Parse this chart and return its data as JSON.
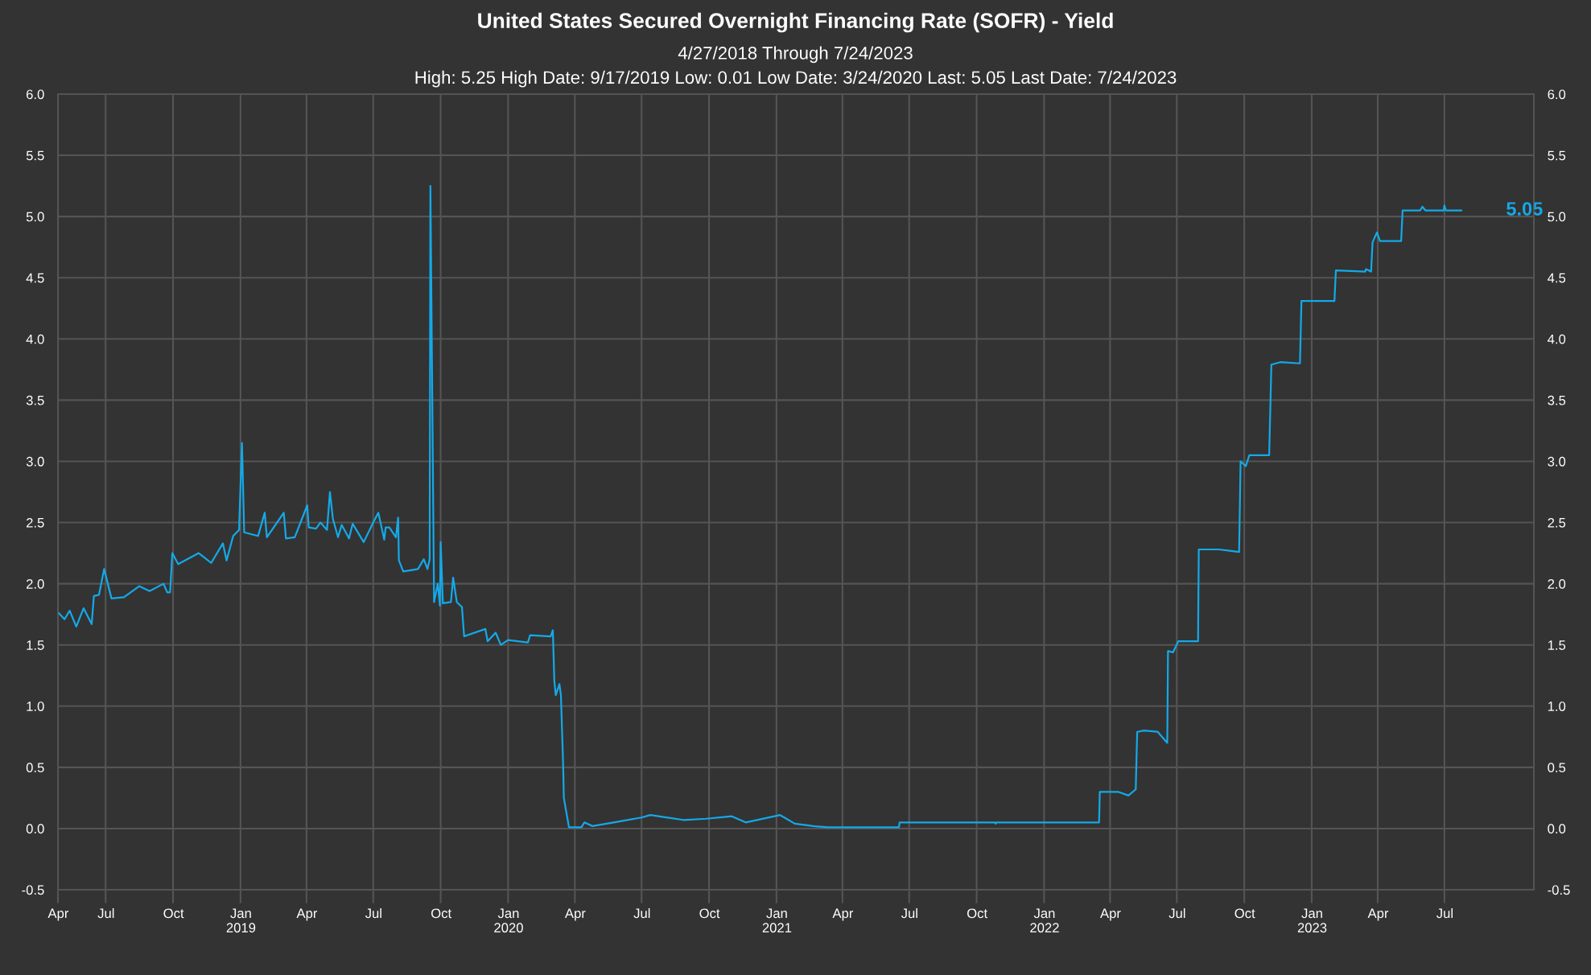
{
  "chart_data": {
    "type": "line",
    "title": "United States Secured Overnight Financing Rate (SOFR) - Yield",
    "subtitle": "4/27/2018 Through 7/24/2023\nHigh: 5.25 High Date: 9/17/2019 Low: 0.01 Low Date: 3/24/2020 Last: 5.05 Last Date: 7/24/2023",
    "x": [
      "2018-04-28",
      "2018-05-06",
      "2018-05-13",
      "2018-05-22",
      "2018-06-01",
      "2018-06-12",
      "2018-06-15",
      "2018-06-22",
      "2018-06-29",
      "2018-07-09",
      "2018-07-26",
      "2018-08-16",
      "2018-08-30",
      "2018-09-18",
      "2018-09-23",
      "2018-09-27",
      "2018-09-30",
      "2018-10-08",
      "2018-11-05",
      "2018-11-22",
      "2018-12-08",
      "2018-12-13",
      "2018-12-22",
      "2018-12-30",
      "2019-01-03",
      "2019-01-06",
      "2019-01-25",
      "2019-02-03",
      "2019-02-06",
      "2019-03-01",
      "2019-03-04",
      "2019-03-16",
      "2019-04-02",
      "2019-04-04",
      "2019-04-14",
      "2019-04-20",
      "2019-04-29",
      "2019-05-03",
      "2019-05-07",
      "2019-05-14",
      "2019-05-19",
      "2019-05-29",
      "2019-06-03",
      "2019-06-18",
      "2019-07-01",
      "2019-07-08",
      "2019-07-16",
      "2019-07-18",
      "2019-07-23",
      "2019-08-01",
      "2019-08-04",
      "2019-08-05",
      "2019-08-11",
      "2019-08-31",
      "2019-09-08",
      "2019-09-13",
      "2019-09-16",
      "2019-09-17",
      "2019-09-22",
      "2019-09-27",
      "2019-09-30",
      "2019-10-01",
      "2019-10-04",
      "2019-10-15",
      "2019-10-18",
      "2019-10-23",
      "2019-10-30",
      "2019-11-02",
      "2019-12-01",
      "2019-12-04",
      "2019-12-15",
      "2019-12-22",
      "2020-01-01",
      "2020-01-28",
      "2020-01-31",
      "2020-02-28",
      "2020-03-02",
      "2020-03-04",
      "2020-03-06",
      "2020-03-11",
      "2020-03-13",
      "2020-03-16",
      "2020-03-17",
      "2020-03-24",
      "2020-04-10",
      "2020-04-14",
      "2020-04-25",
      "2020-05-24",
      "2020-07-01",
      "2020-07-13",
      "2020-08-27",
      "2020-09-27",
      "2020-11-01",
      "2020-11-20",
      "2021-01-06",
      "2021-01-26",
      "2021-02-20",
      "2021-03-12",
      "2021-06-17",
      "2021-06-18",
      "2021-10-26",
      "2021-10-27",
      "2021-10-28",
      "2022-03-17",
      "2022-03-18",
      "2022-04-12",
      "2022-04-26",
      "2022-05-06",
      "2022-05-08",
      "2022-05-17",
      "2022-06-05",
      "2022-06-18",
      "2022-06-19",
      "2022-06-26",
      "2022-07-03",
      "2022-07-30",
      "2022-07-31",
      "2022-08-27",
      "2022-09-24",
      "2022-09-26",
      "2022-10-03",
      "2022-10-08",
      "2022-11-04",
      "2022-11-07",
      "2022-11-19",
      "2022-12-16",
      "2022-12-18",
      "2023-02-01",
      "2023-02-03",
      "2023-03-15",
      "2023-03-16",
      "2023-03-23",
      "2023-03-25",
      "2023-03-31",
      "2023-04-04",
      "2023-05-03",
      "2023-05-05",
      "2023-05-29",
      "2023-06-01",
      "2023-06-05",
      "2023-06-30",
      "2023-07-01",
      "2023-07-03",
      "2023-07-24"
    ],
    "series": [
      {
        "color": "#14a9e8",
        "values": [
          1.76,
          1.71,
          1.78,
          1.65,
          1.8,
          1.67,
          1.9,
          1.91,
          2.12,
          1.88,
          1.89,
          1.98,
          1.94,
          2.0,
          1.93,
          1.93,
          2.25,
          2.16,
          2.25,
          2.17,
          2.33,
          2.19,
          2.39,
          2.44,
          3.15,
          2.42,
          2.39,
          2.58,
          2.38,
          2.58,
          2.37,
          2.38,
          2.64,
          2.46,
          2.45,
          2.5,
          2.44,
          2.75,
          2.53,
          2.38,
          2.48,
          2.37,
          2.49,
          2.34,
          2.5,
          2.58,
          2.36,
          2.46,
          2.46,
          2.38,
          2.54,
          2.19,
          2.1,
          2.12,
          2.2,
          2.12,
          2.2,
          5.25,
          1.85,
          2.0,
          1.82,
          2.34,
          1.84,
          1.85,
          2.05,
          1.85,
          1.81,
          1.57,
          1.63,
          1.53,
          1.6,
          1.5,
          1.54,
          1.52,
          1.58,
          1.57,
          1.62,
          1.21,
          1.09,
          1.18,
          1.09,
          0.53,
          0.25,
          0.01,
          0.01,
          0.05,
          0.02,
          0.05,
          0.09,
          0.11,
          0.07,
          0.08,
          0.1,
          0.05,
          0.11,
          0.04,
          0.02,
          0.01,
          0.01,
          0.05,
          0.05,
          0.04,
          0.05,
          0.05,
          0.3,
          0.3,
          0.27,
          0.32,
          0.79,
          0.8,
          0.79,
          0.7,
          1.45,
          1.44,
          1.53,
          1.53,
          2.28,
          2.28,
          2.26,
          3.0,
          2.96,
          3.05,
          3.05,
          3.79,
          3.81,
          3.8,
          4.31,
          4.31,
          4.56,
          4.55,
          4.57,
          4.55,
          4.79,
          4.87,
          4.8,
          4.8,
          5.05,
          5.05,
          5.08,
          5.05,
          5.05,
          5.09,
          5.05,
          5.05
        ]
      }
    ],
    "xlim": [
      "2018-04-27",
      "2023-10-31"
    ],
    "xticks": [
      {
        "value": "2018-04-27",
        "label": "Apr"
      },
      {
        "value": "2018-07-01",
        "label": "Jul"
      },
      {
        "value": "2018-10-01",
        "label": "Oct"
      },
      {
        "value": "2019-01-01",
        "label": "Jan\n2019"
      },
      {
        "value": "2019-04-01",
        "label": "Apr"
      },
      {
        "value": "2019-07-01",
        "label": "Jul"
      },
      {
        "value": "2019-10-01",
        "label": "Oct"
      },
      {
        "value": "2020-01-01",
        "label": "Jan\n2020"
      },
      {
        "value": "2020-04-01",
        "label": "Apr"
      },
      {
        "value": "2020-07-01",
        "label": "Jul"
      },
      {
        "value": "2020-10-01",
        "label": "Oct"
      },
      {
        "value": "2021-01-01",
        "label": "Jan\n2021"
      },
      {
        "value": "2021-04-01",
        "label": "Apr"
      },
      {
        "value": "2021-07-01",
        "label": "Jul"
      },
      {
        "value": "2021-10-01",
        "label": "Oct"
      },
      {
        "value": "2022-01-01",
        "label": "Jan\n2022"
      },
      {
        "value": "2022-04-01",
        "label": "Apr"
      },
      {
        "value": "2022-07-01",
        "label": "Jul"
      },
      {
        "value": "2022-10-01",
        "label": "Oct"
      },
      {
        "value": "2023-01-01",
        "label": "Jan\n2023"
      },
      {
        "value": "2023-04-01",
        "label": "Apr"
      },
      {
        "value": "2023-07-01",
        "label": "Jul"
      }
    ],
    "ylim": [
      -0.5,
      6
    ],
    "yticks": [
      {
        "value": -0.5,
        "label": "-0.5"
      },
      {
        "value": 0,
        "label": "0.0"
      },
      {
        "value": 0.5,
        "label": "0.5"
      },
      {
        "value": 1,
        "label": "1.0"
      },
      {
        "value": 1.5,
        "label": "1.5"
      },
      {
        "value": 2,
        "label": "2.0"
      },
      {
        "value": 2.5,
        "label": "2.5"
      },
      {
        "value": 3,
        "label": "3.0"
      },
      {
        "value": 3.5,
        "label": "3.5"
      },
      {
        "value": 4,
        "label": "4.0"
      },
      {
        "value": 4.5,
        "label": "4.5"
      },
      {
        "value": 5,
        "label": "5.0"
      },
      {
        "value": 5.5,
        "label": "5.5"
      },
      {
        "value": 6,
        "label": "6.0"
      }
    ],
    "y2lim": [
      -0.5,
      6
    ],
    "y2ticks": [
      {
        "value": -0.5,
        "label": "-0.5"
      },
      {
        "value": 0,
        "label": "0.0"
      },
      {
        "value": 0.5,
        "label": "0.5"
      },
      {
        "value": 1,
        "label": "1.0"
      },
      {
        "value": 1.5,
        "label": "1.5"
      },
      {
        "value": 2,
        "label": "2.0"
      },
      {
        "value": 2.5,
        "label": "2.5"
      },
      {
        "value": 3,
        "label": "3.0"
      },
      {
        "value": 3.5,
        "label": "3.5"
      },
      {
        "value": 4,
        "label": "4.0"
      },
      {
        "value": 4.5,
        "label": "4.5"
      },
      {
        "value": 5,
        "label": "5.0"
      },
      {
        "value": 5.5,
        "label": "5.5"
      },
      {
        "value": 6,
        "label": "6.0"
      }
    ],
    "grid": true,
    "marker": "none",
    "line_style": "solid",
    "annotations": [
      {
        "text": "5.05",
        "x": "2023-07-24",
        "y": 5.05
      }
    ]
  }
}
